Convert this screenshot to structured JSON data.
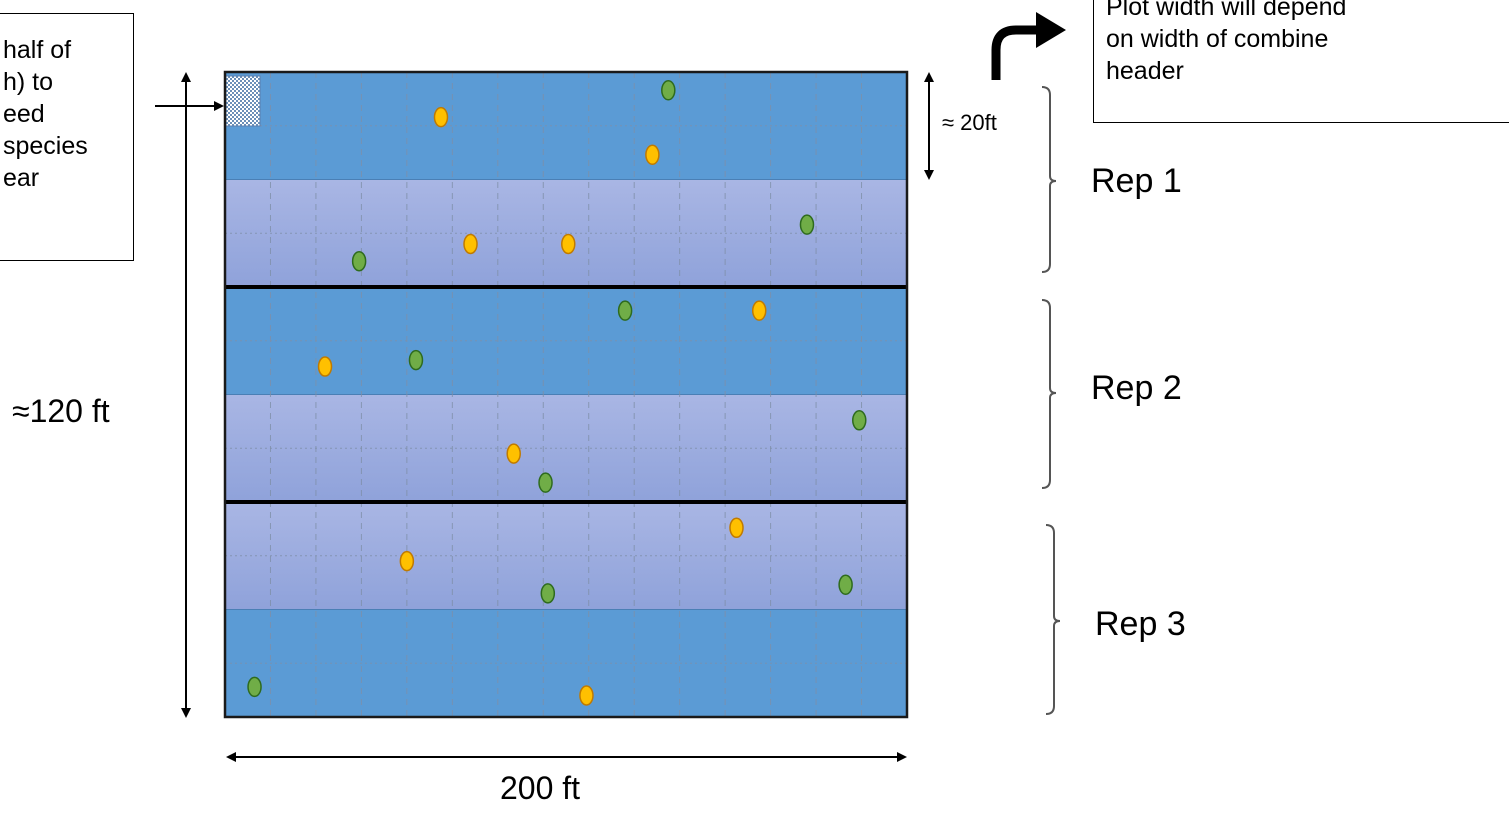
{
  "note_left": {
    "lines": [
      "half of",
      "h) to",
      "eed",
      "species",
      "ear"
    ]
  },
  "note_right": {
    "lines": [
      "Plot width will depend",
      "on width of combine",
      "header"
    ]
  },
  "dimensions": {
    "height": "≈120 ft",
    "width": "200 ft",
    "strip": "≈ 20ft"
  },
  "reps": [
    "Rep 1",
    "Rep 2",
    "Rep 3"
  ],
  "colors": {
    "strip_blue": "#5b9bd5",
    "strip_lavender": "#a3b0e0",
    "marker_green": "#70ad47",
    "marker_yellow": "#ffc000",
    "marker_green_edge": "#2e6b1e",
    "marker_yellow_edge": "#c07a00"
  },
  "layout_grid": {
    "columns": 15,
    "strips": 6
  },
  "strip_pattern": [
    "blue",
    "lavender",
    "blue",
    "lavender",
    "lavender",
    "blue"
  ],
  "markers": [
    {
      "color": "green",
      "col": 9.75,
      "row": 0.17
    },
    {
      "color": "yellow",
      "col": 4.75,
      "row": 0.42
    },
    {
      "color": "yellow",
      "col": 9.4,
      "row": 0.77
    },
    {
      "color": "green",
      "col": 12.8,
      "row": 1.42
    },
    {
      "color": "yellow",
      "col": 5.4,
      "row": 1.6
    },
    {
      "color": "yellow",
      "col": 7.55,
      "row": 1.6
    },
    {
      "color": "green",
      "col": 2.95,
      "row": 1.76
    },
    {
      "color": "green",
      "col": 8.8,
      "row": 2.22
    },
    {
      "color": "yellow",
      "col": 11.75,
      "row": 2.22
    },
    {
      "color": "green",
      "col": 4.2,
      "row": 2.68
    },
    {
      "color": "yellow",
      "col": 2.2,
      "row": 2.74
    },
    {
      "color": "green",
      "col": 13.95,
      "row": 3.24
    },
    {
      "color": "yellow",
      "col": 6.35,
      "row": 3.55
    },
    {
      "color": "green",
      "col": 7.05,
      "row": 3.82
    },
    {
      "color": "yellow",
      "col": 11.25,
      "row": 4.24
    },
    {
      "color": "yellow",
      "col": 4.0,
      "row": 4.55
    },
    {
      "color": "green",
      "col": 13.65,
      "row": 4.77
    },
    {
      "color": "green",
      "col": 7.1,
      "row": 4.85
    },
    {
      "color": "green",
      "col": 0.65,
      "row": 5.72
    },
    {
      "color": "yellow",
      "col": 7.95,
      "row": 5.8
    }
  ]
}
